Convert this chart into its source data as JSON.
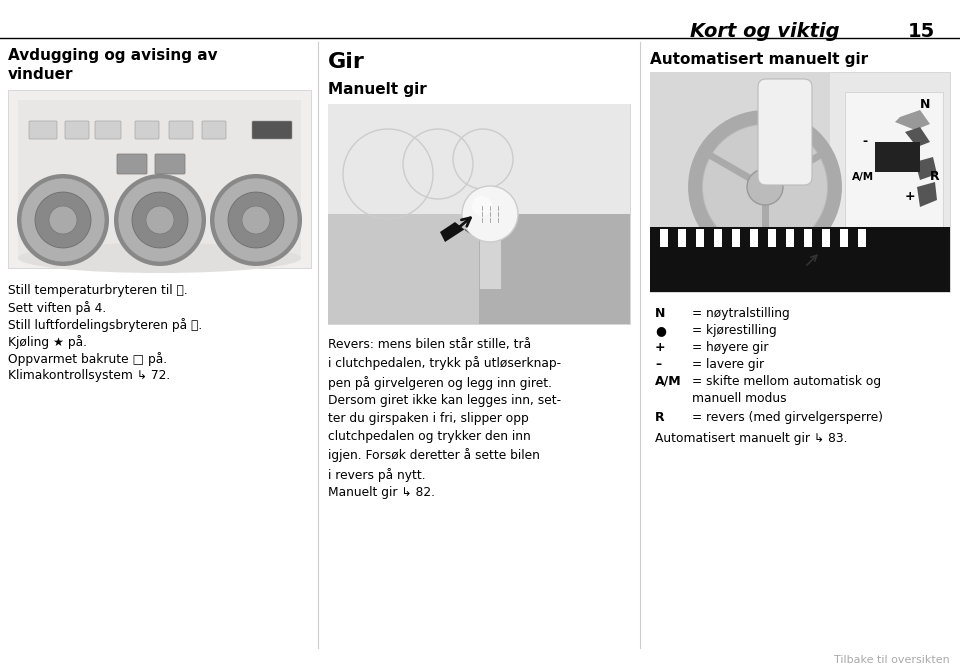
{
  "bg_color": "#ffffff",
  "header_text": "Kort og viktig",
  "header_number": "15",
  "footer_text": "Tilbake til oversikten",
  "col1_heading": "Avdugging og avising av\nvinduer",
  "col2_heading": "Gir",
  "col2_subheading": "Manuelt gir",
  "col3_heading": "Automatisert manuelt gir",
  "col1_bullets": [
    "Still temperaturbryteren til Ⓦ.",
    "Sett viften på 4.",
    "Still luftfordelingsbryteren på Ⓦ.",
    "Kjøling ★ på.",
    "Oppvarmet bakrute □ på.",
    "Klimakontrollsystem ↳ 72."
  ],
  "col2_para1": "Revers: mens bilen står stille, trå\ni clutchpedalen, trykk på utløserknap-\npen på girvelgeren og legg inn giret.",
  "col2_para2": "Dersom giret ikke kan legges inn, set-\nter du girspaken i fri, slipper opp\nclutchpedalen og trykker den inn\nigjen. Forsøk deretter å sette bilen\ni revers på nytt.",
  "col2_para3": "Manuelt gir ↳ 82.",
  "col3_legend": [
    [
      "N",
      "= nøytralstilling"
    ],
    [
      "●",
      "= kjørestilling"
    ],
    [
      "+",
      "= høyere gir"
    ],
    [
      "–",
      "= lavere gir"
    ],
    [
      "A/M",
      "= skifte mellom automatisk og\nmanuell modus"
    ],
    [
      "R",
      "= revers (med girvelgersperre)"
    ]
  ],
  "col3_footer": "Automatisert manuelt gir ↳ 83.",
  "divider_color": "#000000",
  "text_color": "#000000",
  "header_color": "#000000",
  "footer_color": "#aaaaaa",
  "col_divider_color": "#cccccc"
}
